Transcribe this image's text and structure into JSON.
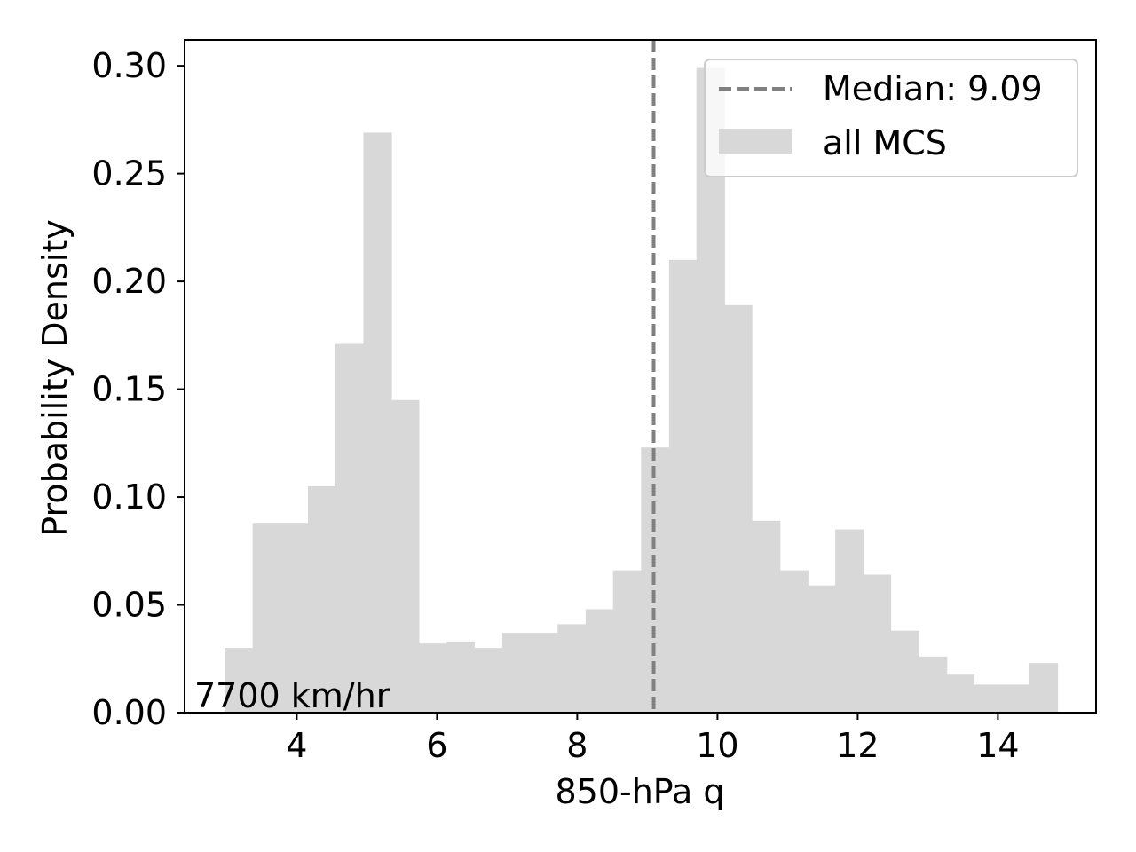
{
  "chart_data": {
    "type": "bar",
    "histogram": true,
    "xlabel": "850-hPa q",
    "ylabel": "Probability Density",
    "xlim": [
      2.4,
      15.4
    ],
    "ylim": [
      0,
      0.312
    ],
    "xticks": [
      4,
      6,
      8,
      10,
      12,
      14
    ],
    "xtick_labels": [
      "4",
      "6",
      "8",
      "10",
      "12",
      "14"
    ],
    "yticks": [
      0.0,
      0.05,
      0.1,
      0.15,
      0.2,
      0.25,
      0.3
    ],
    "ytick_labels": [
      "0.00",
      "0.05",
      "0.10",
      "0.15",
      "0.20",
      "0.25",
      "0.30"
    ],
    "grid": false,
    "legend_position": "top-right",
    "bin_edges": [
      2.97,
      3.37,
      3.76,
      4.16,
      4.55,
      4.95,
      5.35,
      5.74,
      6.14,
      6.53,
      6.93,
      7.33,
      7.72,
      8.12,
      8.51,
      8.91,
      9.31,
      9.7,
      10.1,
      10.49,
      10.89,
      11.29,
      11.68,
      12.08,
      12.47,
      12.87,
      13.27,
      13.66,
      14.06,
      14.45,
      14.85
    ],
    "values": [
      0.03,
      0.088,
      0.088,
      0.105,
      0.171,
      0.269,
      0.145,
      0.032,
      0.033,
      0.03,
      0.037,
      0.037,
      0.041,
      0.048,
      0.066,
      0.123,
      0.21,
      0.299,
      0.189,
      0.089,
      0.066,
      0.059,
      0.085,
      0.064,
      0.038,
      0.026,
      0.018,
      0.013,
      0.013,
      0.023
    ],
    "bar_color": "#d8d8d8",
    "median": {
      "value": 9.09,
      "label": "Median: 9.09",
      "color": "#808080"
    },
    "series_label": "all MCS",
    "annotation": "7700 km/hr"
  }
}
